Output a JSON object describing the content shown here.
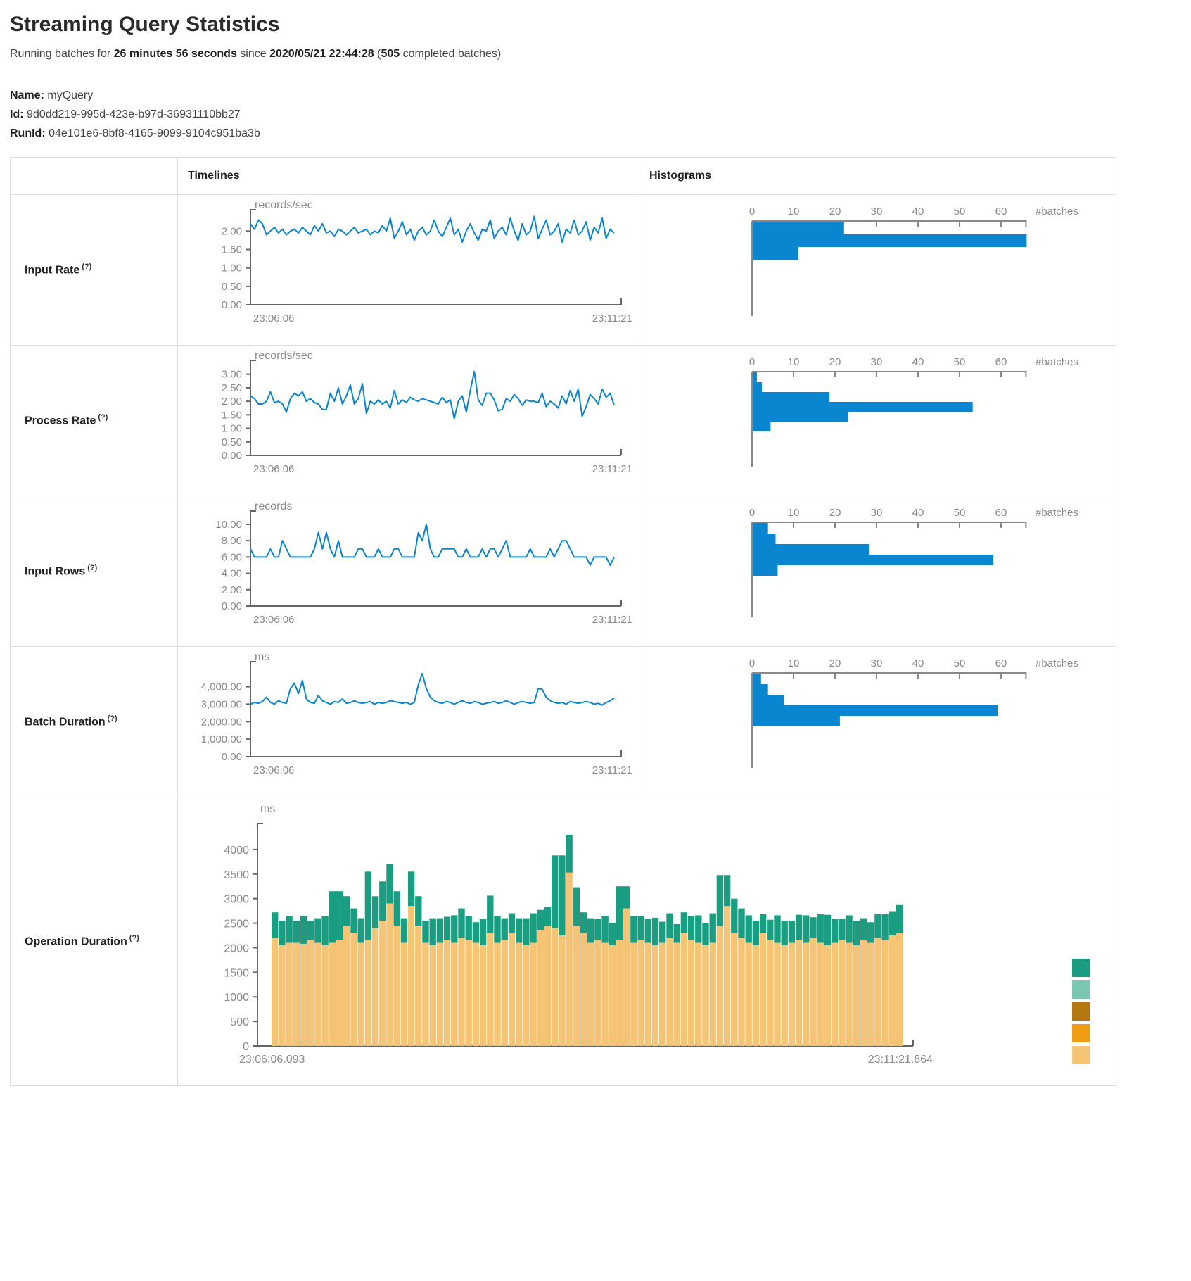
{
  "page": {
    "title": "Streaming Query Statistics",
    "subtitle_prefix": "Running batches for ",
    "duration": "26 minutes 56 seconds",
    "since_text": " since ",
    "start_time": "2020/05/21 22:44:28",
    "batches_open": " (",
    "completed_batches": "505",
    "batches_suffix": " completed batches)",
    "name_label": "Name:",
    "name_value": "myQuery",
    "id_label": "Id:",
    "id_value": "9d0dd219-995d-423e-b97d-36931110bb27",
    "runid_label": "RunId:",
    "runid_value": "04e101e6-8bf8-4165-9099-9104c951ba3b"
  },
  "ui": {
    "col_timelines": "Timelines",
    "col_histograms": "Histograms",
    "help_marker": "(?)"
  },
  "colors": {
    "line_blue": "#0a85d0",
    "hist_blue": "#0a85d0",
    "axis_dark": "#666666",
    "axis_gray": "#888888",
    "label_gray": "#8a8a8a"
  },
  "chart_data": {
    "rows": [
      {
        "label": "Input Rate",
        "timeline": {
          "type": "line",
          "unit": "records/sec",
          "x_start": "23:06:06",
          "x_end": "23:11:21",
          "ymax": 2.35,
          "ytick_values": [
            0,
            0.5,
            1,
            1.5,
            2
          ],
          "ytick_labels": [
            "0.00",
            "0.50",
            "1.00",
            "1.50",
            "2.00"
          ],
          "values": [
            2.2,
            2.05,
            2.3,
            2.2,
            1.9,
            2.0,
            2.1,
            1.95,
            2.05,
            1.9,
            2.0,
            2.05,
            1.95,
            2.1,
            2.0,
            1.9,
            2.15,
            2.0,
            2.2,
            1.95,
            2.0,
            1.85,
            2.05,
            2.0,
            1.9,
            2.0,
            2.1,
            1.95,
            2.0,
            2.05,
            1.9,
            2.0,
            1.95,
            2.15,
            2.0,
            2.35,
            1.8,
            2.0,
            2.25,
            1.9,
            2.05,
            1.75,
            2.0,
            2.1,
            1.9,
            2.0,
            2.3,
            2.0,
            1.85,
            2.1,
            2.35,
            1.9,
            2.05,
            1.7,
            2.0,
            2.2,
            1.95,
            1.75,
            2.05,
            2.0,
            2.3,
            1.8,
            2.0,
            2.1,
            1.9,
            2.35,
            2.0,
            1.75,
            2.2,
            1.9,
            2.0,
            2.4,
            1.8,
            2.05,
            2.3,
            1.9,
            2.0,
            2.2,
            1.7,
            2.05,
            1.95,
            2.3,
            1.9,
            2.0,
            2.25,
            1.75,
            2.1,
            1.95,
            2.35,
            1.8,
            2.05,
            1.95
          ]
        },
        "histogram": {
          "type": "bar",
          "unit": "#batches",
          "tick_values": [
            0,
            10,
            20,
            30,
            40,
            50,
            60
          ],
          "axis_max": 66,
          "bars": [
            22,
            66,
            11
          ]
        }
      },
      {
        "label": "Process Rate",
        "timeline": {
          "type": "line",
          "unit": "records/sec",
          "x_start": "23:06:06",
          "x_end": "23:11:21",
          "ymax": 3.2,
          "ytick_values": [
            0,
            0.5,
            1,
            1.5,
            2,
            2.5,
            3
          ],
          "ytick_labels": [
            "0.00",
            "0.50",
            "1.00",
            "1.50",
            "2.00",
            "2.50",
            "3.00"
          ],
          "values": [
            2.2,
            2.1,
            1.9,
            1.9,
            2.0,
            2.35,
            1.95,
            2.0,
            1.9,
            1.6,
            2.1,
            2.3,
            2.2,
            2.35,
            2.0,
            2.1,
            1.95,
            1.9,
            1.7,
            1.7,
            2.3,
            2.0,
            2.5,
            1.9,
            2.2,
            2.6,
            1.9,
            2.1,
            2.65,
            1.55,
            2.0,
            1.9,
            2.05,
            1.9,
            2.0,
            1.75,
            2.4,
            1.9,
            2.05,
            1.95,
            2.15,
            2.05,
            2.0,
            2.1,
            2.05,
            2.0,
            1.95,
            1.9,
            2.15,
            1.95,
            2.05,
            1.35,
            2.0,
            2.2,
            1.6,
            2.4,
            3.1,
            2.05,
            1.85,
            2.3,
            2.3,
            2.05,
            1.65,
            1.7,
            2.1,
            2.0,
            2.25,
            2.1,
            1.85,
            2.05,
            2.0,
            2.0,
            1.95,
            2.3,
            1.8,
            2.0,
            1.9,
            1.75,
            2.2,
            1.9,
            2.4,
            2.0,
            2.45,
            1.45,
            1.8,
            2.25,
            2.1,
            1.9,
            2.45,
            2.15,
            2.3,
            1.85
          ]
        },
        "histogram": {
          "type": "bar",
          "unit": "#batches",
          "tick_values": [
            0,
            10,
            20,
            30,
            40,
            50,
            60
          ],
          "axis_max": 66,
          "bars": [
            1,
            2.2,
            18.5,
            53,
            23,
            4.3
          ]
        }
      },
      {
        "label": "Input Rows",
        "timeline": {
          "type": "line",
          "unit": "records",
          "x_start": "23:06:06",
          "x_end": "23:11:21",
          "ymax": 10.6,
          "ytick_values": [
            0,
            2,
            4,
            6,
            8,
            10
          ],
          "ytick_labels": [
            "0.00",
            "2.00",
            "4.00",
            "6.00",
            "8.00",
            "10.00"
          ],
          "values": [
            7,
            6,
            6,
            6,
            6,
            7,
            6,
            6,
            8,
            7,
            6,
            6,
            6,
            6,
            6,
            6,
            7,
            9,
            7,
            9,
            7,
            6,
            8,
            6,
            6,
            6,
            6,
            7,
            7,
            6,
            6,
            6,
            7,
            6,
            6,
            6,
            7,
            7,
            6,
            6,
            6,
            6,
            9,
            8,
            10,
            7,
            6,
            6,
            7,
            7,
            7,
            7,
            6,
            6,
            7,
            6,
            6,
            6,
            7,
            6,
            7,
            7,
            6,
            7,
            8,
            6,
            6,
            6,
            6,
            6,
            7,
            6,
            6,
            6,
            6,
            7,
            6,
            7,
            8,
            8,
            7,
            6,
            6,
            6,
            6,
            5,
            6,
            6,
            6,
            6,
            5,
            6
          ]
        },
        "histogram": {
          "type": "bar",
          "unit": "#batches",
          "tick_values": [
            0,
            10,
            20,
            30,
            40,
            50,
            60
          ],
          "axis_max": 66,
          "bars": [
            3.5,
            5.5,
            28,
            58,
            6
          ]
        }
      },
      {
        "label": "Batch Duration",
        "timeline": {
          "type": "line",
          "unit": "ms",
          "x_start": "23:06:06",
          "x_end": "23:11:21",
          "ymax": 4950,
          "ytick_values": [
            0,
            1000,
            2000,
            3000,
            4000
          ],
          "ytick_labels": [
            "0.00",
            "1,000.00",
            "2,000.00",
            "3,000.00",
            "4,000.00"
          ],
          "values": [
            3000,
            3100,
            3050,
            3150,
            3400,
            3100,
            3000,
            3200,
            3100,
            3050,
            3900,
            4200,
            3600,
            4350,
            3300,
            3100,
            3050,
            3500,
            3200,
            3100,
            3000,
            3150,
            3100,
            3300,
            3050,
            3100,
            3200,
            3100,
            3050,
            3100,
            3150,
            3000,
            3100,
            3050,
            3100,
            3200,
            3150,
            3100,
            3050,
            3100,
            3000,
            3100,
            4100,
            4750,
            3900,
            3400,
            3200,
            3100,
            3050,
            3150,
            3100,
            3000,
            3100,
            3200,
            3100,
            3050,
            3150,
            3100,
            3000,
            3050,
            3100,
            3150,
            3050,
            3100,
            3200,
            3100,
            3000,
            3100,
            3150,
            3100,
            3050,
            3100,
            3900,
            3850,
            3400,
            3200,
            3100,
            3050,
            3100,
            3000,
            3150,
            3100,
            3050,
            3100,
            3150,
            3100,
            3000,
            3050,
            2950,
            3100,
            3200,
            3350
          ]
        },
        "histogram": {
          "type": "bar",
          "unit": "#batches",
          "tick_values": [
            0,
            10,
            20,
            30,
            40,
            50,
            60
          ],
          "axis_max": 66,
          "bars": [
            2,
            3.5,
            7.5,
            59,
            21
          ]
        }
      }
    ],
    "operation": {
      "label": "Operation Duration",
      "type": "stacked-bar",
      "unit": "ms",
      "x_start": "23:06:06.093",
      "x_end": "23:11:21.864",
      "ymax": 4400,
      "ytick_values": [
        0,
        500,
        1000,
        1500,
        2000,
        2500,
        3000,
        3500,
        4000
      ],
      "ytick_labels": [
        "0",
        "500",
        "1000",
        "1500",
        "2000",
        "2500",
        "3000",
        "3500",
        "4000"
      ],
      "series": [
        {
          "name": "bottom",
          "color": "#f6c475",
          "values": [
            2200,
            2050,
            2100,
            2100,
            2080,
            2150,
            2100,
            2050,
            2100,
            2150,
            2450,
            2300,
            2100,
            2150,
            2400,
            2550,
            2900,
            2450,
            2100,
            2850,
            2450,
            2100,
            2050,
            2100,
            2150,
            2100,
            2200,
            2150,
            2100,
            2050,
            2300,
            2100,
            2150,
            2300,
            2100,
            2050,
            2100,
            2350,
            2450,
            2400,
            2250,
            3530,
            2450,
            2300,
            2100,
            2150,
            2100,
            2050,
            2150,
            2800,
            2100,
            2150,
            2100,
            2050,
            2100,
            2200,
            2100,
            2300,
            2150,
            2100,
            2050,
            2100,
            2450,
            2850,
            2300,
            2200,
            2100,
            2050,
            2300,
            2150,
            2100,
            2050,
            2100,
            2150,
            2100,
            2200,
            2100,
            2050,
            2100,
            2150,
            2100,
            2050,
            2150,
            2100,
            2200,
            2150,
            2250,
            2300
          ]
        },
        {
          "name": "top",
          "color": "#1a9e82",
          "values": [
            520,
            500,
            550,
            450,
            560,
            400,
            500,
            600,
            1050,
            1000,
            600,
            500,
            500,
            1400,
            650,
            800,
            800,
            700,
            500,
            700,
            600,
            450,
            550,
            500,
            480,
            560,
            600,
            500,
            420,
            530,
            760,
            550,
            450,
            400,
            500,
            550,
            600,
            420,
            380,
            1480,
            1630,
            770,
            780,
            420,
            500,
            430,
            550,
            460,
            1100,
            450,
            550,
            500,
            480,
            560,
            430,
            500,
            380,
            420,
            500,
            560,
            450,
            600,
            1030,
            630,
            700,
            600,
            560,
            500,
            380,
            420,
            560,
            500,
            450,
            520,
            560,
            420,
            580,
            620,
            480,
            430,
            560,
            500,
            450,
            420,
            480,
            530,
            480,
            570
          ]
        }
      ],
      "legend_colors": [
        "#1a9e82",
        "#79c7b3",
        "#b5770f",
        "#f29c11",
        "#f6c475"
      ]
    }
  }
}
